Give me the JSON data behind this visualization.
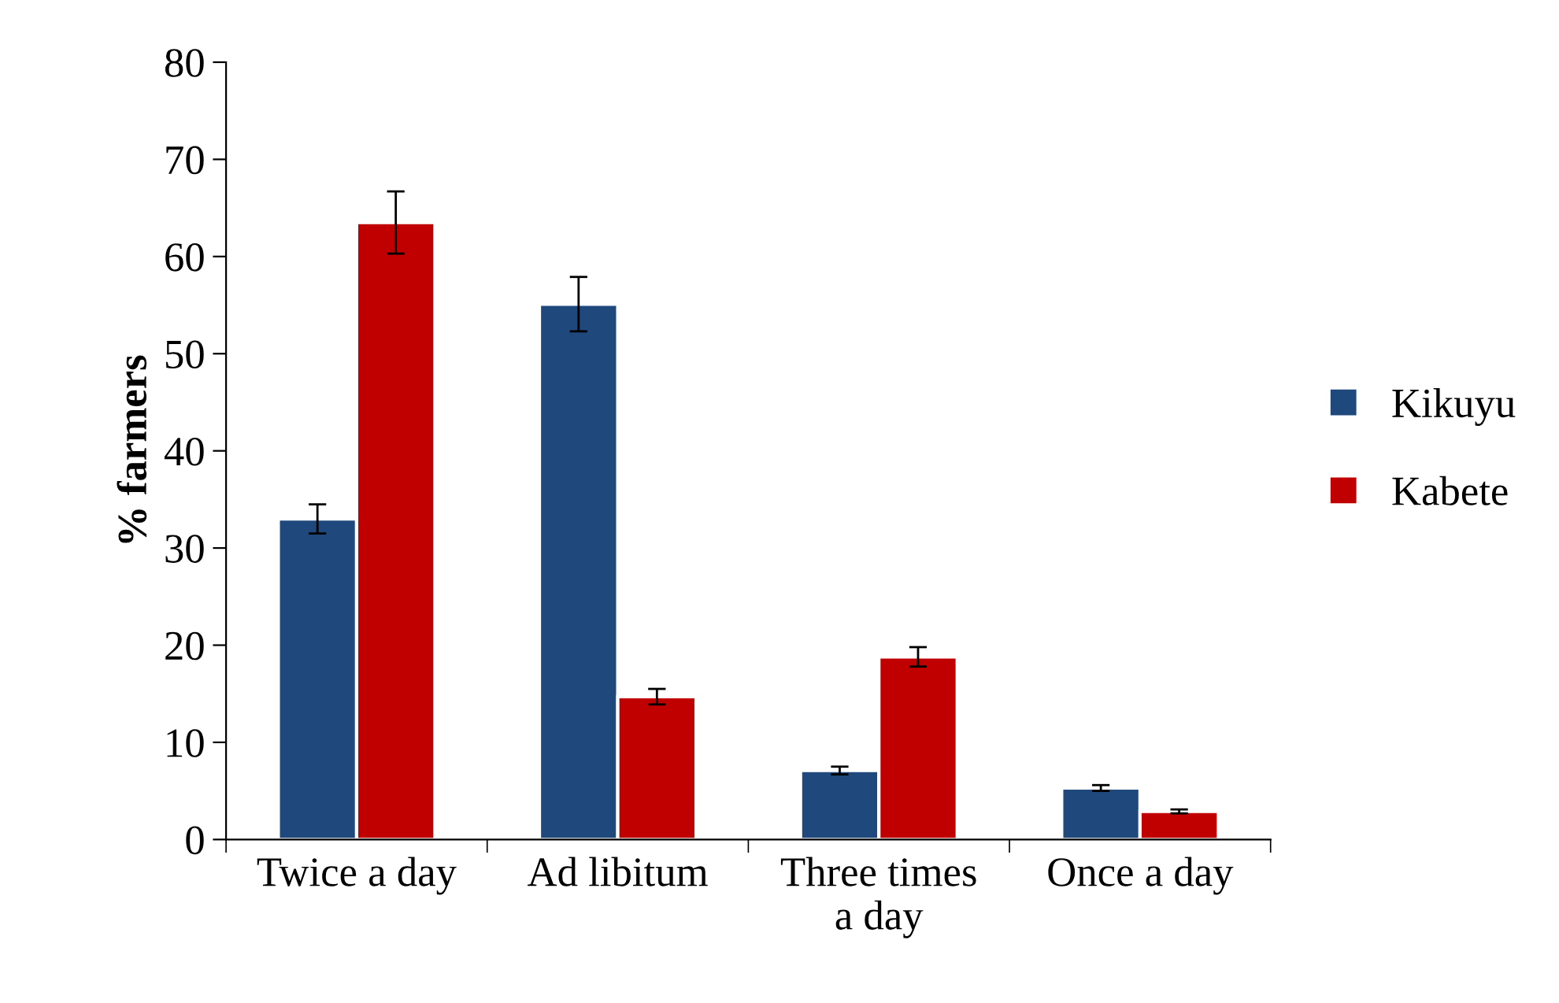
{
  "chart_data": {
    "type": "bar",
    "ylabel": "% farmers",
    "categories": [
      "Twice a day",
      "Ad libitum",
      "Three times\na day",
      "Once a day"
    ],
    "series": [
      {
        "name": "Kikuyu",
        "color": "#1f497d",
        "values": [
          33.0,
          55.1,
          7.1,
          5.3
        ],
        "errors": [
          1.5,
          2.8,
          0.4,
          0.3
        ]
      },
      {
        "name": "Kabete",
        "color": "#c00000",
        "values": [
          63.5,
          14.7,
          18.8,
          2.9
        ],
        "errors": [
          3.2,
          0.8,
          1.0,
          0.2
        ]
      }
    ],
    "ylim": [
      0,
      80
    ],
    "yticks": [
      0,
      10,
      20,
      30,
      40,
      50,
      60,
      70,
      80
    ],
    "grid": false,
    "legend": "right"
  }
}
